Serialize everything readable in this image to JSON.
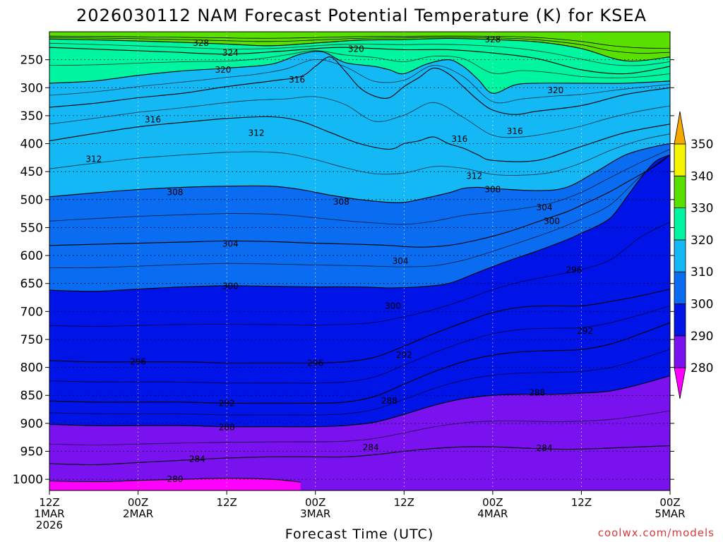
{
  "chart_data": {
    "type": "heatmap",
    "title": "2026030112 NAM Forecast Potential Temperature (K) for KSEA",
    "xlabel": "Forecast Time (UTC)",
    "ylabel": "",
    "credit": "coolwx.com/models",
    "y_ticks": [
      250,
      300,
      350,
      400,
      450,
      500,
      550,
      600,
      650,
      700,
      750,
      800,
      850,
      900,
      950,
      1000
    ],
    "y_range": [
      200,
      1020
    ],
    "x_range": [
      0,
      84
    ],
    "x_ticks": [
      {
        "t": 0,
        "line1": "12Z",
        "line2": "1MAR",
        "line3": "2026"
      },
      {
        "t": 12,
        "line1": "00Z",
        "line2": "2MAR",
        "line3": ""
      },
      {
        "t": 24,
        "line1": "12Z",
        "line2": "",
        "line3": ""
      },
      {
        "t": 36,
        "line1": "00Z",
        "line2": "3MAR",
        "line3": ""
      },
      {
        "t": 48,
        "line1": "12Z",
        "line2": "",
        "line3": ""
      },
      {
        "t": 60,
        "line1": "00Z",
        "line2": "4MAR",
        "line3": ""
      },
      {
        "t": 72,
        "line1": "12Z",
        "line2": "",
        "line3": ""
      },
      {
        "t": 84,
        "line1": "00Z",
        "line2": "5MAR",
        "line3": ""
      }
    ],
    "color_scale": {
      "labels": [
        280,
        290,
        300,
        310,
        320,
        330,
        340,
        350
      ],
      "bands": [
        {
          "from": 270,
          "to": 280,
          "color": "#ff00ff"
        },
        {
          "from": 280,
          "to": 290,
          "color": "#7a12f0"
        },
        {
          "from": 290,
          "to": 300,
          "color": "#0014e8"
        },
        {
          "from": 300,
          "to": 310,
          "color": "#0a6cf0"
        },
        {
          "from": 310,
          "to": 320,
          "color": "#14b8f5"
        },
        {
          "from": 320,
          "to": 330,
          "color": "#00f5a0"
        },
        {
          "from": 330,
          "to": 340,
          "color": "#5ae000"
        },
        {
          "from": 340,
          "to": 350,
          "color": "#f5f500"
        },
        {
          "from": 350,
          "to": 360,
          "color": "#f5a800"
        }
      ]
    },
    "ground_color": "#a0522d",
    "isentropes": [
      {
        "theta": 328,
        "points": [
          [
            0,
            213
          ],
          [
            8,
            215
          ],
          [
            16,
            218
          ],
          [
            24,
            222
          ],
          [
            30,
            225
          ],
          [
            36,
            220
          ],
          [
            42,
            215
          ],
          [
            48,
            214
          ],
          [
            54,
            212
          ],
          [
            60,
            214
          ],
          [
            66,
            218
          ],
          [
            72,
            230
          ],
          [
            78,
            252
          ],
          [
            84,
            245
          ]
        ]
      },
      {
        "theta": 324,
        "points": [
          [
            0,
            228
          ],
          [
            8,
            232
          ],
          [
            16,
            236
          ],
          [
            24,
            240
          ],
          [
            30,
            236
          ],
          [
            36,
            230
          ],
          [
            40,
            228
          ],
          [
            48,
            232
          ],
          [
            54,
            232
          ],
          [
            60,
            238
          ],
          [
            66,
            248
          ],
          [
            72,
            268
          ],
          [
            78,
            275
          ],
          [
            84,
            262
          ]
        ]
      },
      {
        "theta": 320,
        "points": [
          [
            0,
            292
          ],
          [
            6,
            288
          ],
          [
            12,
            278
          ],
          [
            18,
            270
          ],
          [
            24,
            265
          ],
          [
            30,
            258
          ],
          [
            34,
            240
          ],
          [
            37,
            236
          ],
          [
            40,
            255
          ],
          [
            44,
            262
          ],
          [
            46,
            268
          ],
          [
            48,
            275
          ],
          [
            51,
            258
          ],
          [
            54,
            250
          ],
          [
            56,
            262
          ],
          [
            58,
            285
          ],
          [
            60,
            310
          ],
          [
            63,
            295
          ],
          [
            66,
            292
          ],
          [
            72,
            292
          ],
          [
            78,
            292
          ],
          [
            84,
            288
          ]
        ]
      },
      {
        "theta": 316,
        "points": [
          [
            0,
            335
          ],
          [
            6,
            328
          ],
          [
            12,
            318
          ],
          [
            18,
            310
          ],
          [
            24,
            298
          ],
          [
            30,
            288
          ],
          [
            34,
            280
          ],
          [
            36,
            262
          ],
          [
            38,
            245
          ],
          [
            40,
            270
          ],
          [
            42,
            300
          ],
          [
            44,
            315
          ],
          [
            46,
            318
          ],
          [
            48,
            298
          ],
          [
            50,
            282
          ],
          [
            52,
            265
          ],
          [
            54,
            275
          ],
          [
            56,
            298
          ],
          [
            58,
            322
          ],
          [
            60,
            340
          ],
          [
            63,
            348
          ],
          [
            66,
            342
          ],
          [
            72,
            332
          ],
          [
            78,
            312
          ],
          [
            84,
            300
          ]
        ]
      },
      {
        "theta": 312,
        "points": [
          [
            0,
            395
          ],
          [
            6,
            382
          ],
          [
            12,
            370
          ],
          [
            18,
            362
          ],
          [
            24,
            355
          ],
          [
            30,
            352
          ],
          [
            34,
            360
          ],
          [
            38,
            380
          ],
          [
            42,
            400
          ],
          [
            46,
            410
          ],
          [
            48,
            400
          ],
          [
            50,
            395
          ],
          [
            52,
            388
          ],
          [
            54,
            400
          ],
          [
            56,
            408
          ],
          [
            58,
            420
          ],
          [
            60,
            430
          ],
          [
            66,
            430
          ],
          [
            72,
            405
          ],
          [
            78,
            380
          ],
          [
            84,
            365
          ]
        ]
      },
      {
        "theta": 308,
        "points": [
          [
            0,
            495
          ],
          [
            6,
            488
          ],
          [
            12,
            482
          ],
          [
            18,
            478
          ],
          [
            24,
            476
          ],
          [
            30,
            476
          ],
          [
            34,
            482
          ],
          [
            38,
            492
          ],
          [
            42,
            500
          ],
          [
            46,
            505
          ],
          [
            48,
            505
          ],
          [
            50,
            500
          ],
          [
            54,
            488
          ],
          [
            56,
            480
          ],
          [
            58,
            478
          ],
          [
            60,
            480
          ],
          [
            66,
            484
          ],
          [
            70,
            478
          ],
          [
            74,
            450
          ],
          [
            78,
            420
          ],
          [
            82,
            405
          ],
          [
            84,
            400
          ]
        ]
      },
      {
        "theta": 304,
        "points": [
          [
            0,
            582
          ],
          [
            6,
            580
          ],
          [
            12,
            578
          ],
          [
            18,
            576
          ],
          [
            24,
            574
          ],
          [
            30,
            575
          ],
          [
            36,
            578
          ],
          [
            42,
            580
          ],
          [
            46,
            582
          ],
          [
            50,
            585
          ],
          [
            54,
            582
          ],
          [
            58,
            572
          ],
          [
            62,
            558
          ],
          [
            66,
            540
          ],
          [
            70,
            522
          ],
          [
            72,
            510
          ],
          [
            74,
            498
          ],
          [
            76,
            485
          ],
          [
            78,
            470
          ],
          [
            82,
            440
          ],
          [
            84,
            420
          ]
        ]
      },
      {
        "theta": 300,
        "points": [
          [
            0,
            662
          ],
          [
            6,
            664
          ],
          [
            12,
            660
          ],
          [
            18,
            656
          ],
          [
            24,
            654
          ],
          [
            30,
            655
          ],
          [
            36,
            656
          ],
          [
            42,
            656
          ],
          [
            46,
            658
          ],
          [
            50,
            656
          ],
          [
            54,
            650
          ],
          [
            58,
            630
          ],
          [
            62,
            610
          ],
          [
            66,
            592
          ],
          [
            70,
            572
          ],
          [
            72,
            560
          ],
          [
            74,
            548
          ],
          [
            76,
            532
          ],
          [
            78,
            498
          ],
          [
            80,
            462
          ],
          [
            82,
            432
          ],
          [
            84,
            420
          ]
        ]
      },
      {
        "theta": 296,
        "points": [
          [
            0,
            788
          ],
          [
            6,
            790
          ],
          [
            12,
            790
          ],
          [
            18,
            790
          ],
          [
            24,
            792
          ],
          [
            30,
            792
          ],
          [
            36,
            792
          ],
          [
            40,
            790
          ],
          [
            44,
            782
          ],
          [
            48,
            762
          ],
          [
            52,
            740
          ],
          [
            56,
            720
          ],
          [
            60,
            702
          ],
          [
            64,
            692
          ],
          [
            68,
            690
          ],
          [
            72,
            690
          ],
          [
            76,
            682
          ],
          [
            80,
            672
          ],
          [
            84,
            660
          ]
        ]
      },
      {
        "theta": 292,
        "points": [
          [
            0,
            860
          ],
          [
            6,
            862
          ],
          [
            12,
            862
          ],
          [
            18,
            862
          ],
          [
            24,
            864
          ],
          [
            30,
            864
          ],
          [
            36,
            864
          ],
          [
            40,
            862
          ],
          [
            44,
            852
          ],
          [
            48,
            830
          ],
          [
            52,
            808
          ],
          [
            56,
            790
          ],
          [
            60,
            778
          ],
          [
            64,
            772
          ],
          [
            68,
            770
          ],
          [
            72,
            768
          ],
          [
            76,
            758
          ],
          [
            80,
            740
          ],
          [
            84,
            720
          ]
        ]
      },
      {
        "theta": 288,
        "points": [
          [
            0,
            902
          ],
          [
            6,
            904
          ],
          [
            12,
            904
          ],
          [
            18,
            904
          ],
          [
            24,
            906
          ],
          [
            30,
            906
          ],
          [
            36,
            906
          ],
          [
            40,
            904
          ],
          [
            44,
            898
          ],
          [
            48,
            884
          ],
          [
            52,
            868
          ],
          [
            56,
            856
          ],
          [
            60,
            850
          ],
          [
            64,
            848
          ],
          [
            68,
            848
          ],
          [
            72,
            846
          ],
          [
            76,
            842
          ],
          [
            80,
            830
          ],
          [
            84,
            815
          ]
        ]
      },
      {
        "theta": 284,
        "points": [
          [
            0,
            972
          ],
          [
            6,
            974
          ],
          [
            12,
            970
          ],
          [
            18,
            966
          ],
          [
            24,
            962
          ],
          [
            30,
            960
          ],
          [
            36,
            960
          ],
          [
            40,
            960
          ],
          [
            44,
            956
          ],
          [
            48,
            950
          ],
          [
            52,
            945
          ],
          [
            56,
            942
          ],
          [
            60,
            942
          ],
          [
            64,
            944
          ],
          [
            68,
            946
          ],
          [
            72,
            946
          ],
          [
            76,
            944
          ],
          [
            80,
            942
          ],
          [
            84,
            940
          ]
        ]
      },
      {
        "theta": 280,
        "points": [
          [
            0,
            1003
          ],
          [
            4,
            1004
          ],
          [
            8,
            1004
          ],
          [
            12,
            1002
          ],
          [
            18,
            1000
          ],
          [
            24,
            998
          ],
          [
            30,
            1000
          ],
          [
            34,
            1005
          ]
        ]
      }
    ],
    "contour_labels": [
      {
        "theta": "328",
        "t": 20.5,
        "p": 220
      },
      {
        "theta": "328",
        "t": 60,
        "p": 214
      },
      {
        "theta": "324",
        "t": 24.5,
        "p": 238
      },
      {
        "theta": "320",
        "t": 41.5,
        "p": 231
      },
      {
        "theta": "320",
        "t": 23.5,
        "p": 268
      },
      {
        "theta": "320",
        "t": 68.5,
        "p": 305
      },
      {
        "theta": "316",
        "t": 33.5,
        "p": 286
      },
      {
        "theta": "316",
        "t": 14,
        "p": 357
      },
      {
        "theta": "316",
        "t": 55.5,
        "p": 392
      },
      {
        "theta": "316",
        "t": 63,
        "p": 378
      },
      {
        "theta": "312",
        "t": 28,
        "p": 381
      },
      {
        "theta": "312",
        "t": 6,
        "p": 428
      },
      {
        "theta": "312",
        "t": 57.5,
        "p": 458
      },
      {
        "theta": "308",
        "t": 17,
        "p": 487
      },
      {
        "theta": "308",
        "t": 39.5,
        "p": 504
      },
      {
        "theta": "308",
        "t": 60,
        "p": 482
      },
      {
        "theta": "304",
        "t": 24.5,
        "p": 579
      },
      {
        "theta": "304",
        "t": 47.5,
        "p": 610
      },
      {
        "theta": "304",
        "t": 67,
        "p": 514
      },
      {
        "theta": "300",
        "t": 24.5,
        "p": 655
      },
      {
        "theta": "300",
        "t": 46.5,
        "p": 690
      },
      {
        "theta": "300",
        "t": 68,
        "p": 539
      },
      {
        "theta": "296",
        "t": 12,
        "p": 790
      },
      {
        "theta": "296",
        "t": 36,
        "p": 792
      },
      {
        "theta": "296",
        "t": 71,
        "p": 626
      },
      {
        "theta": "292",
        "t": 24,
        "p": 864
      },
      {
        "theta": "292",
        "t": 48,
        "p": 778
      },
      {
        "theta": "292",
        "t": 72.5,
        "p": 735
      },
      {
        "theta": "288",
        "t": 24,
        "p": 907
      },
      {
        "theta": "288",
        "t": 46,
        "p": 860
      },
      {
        "theta": "288",
        "t": 66,
        "p": 845
      },
      {
        "theta": "284",
        "t": 20,
        "p": 964
      },
      {
        "theta": "284",
        "t": 43.5,
        "p": 943
      },
      {
        "theta": "284",
        "t": 67,
        "p": 944
      },
      {
        "theta": "280",
        "t": 17,
        "p": 1000
      }
    ]
  }
}
